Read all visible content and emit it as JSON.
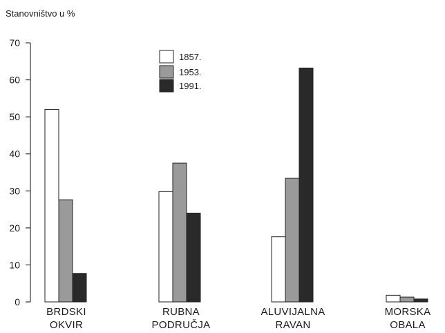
{
  "chart_data": {
    "type": "bar",
    "title": "",
    "ylabel": "Stanovništvo u %",
    "xlabel": "",
    "ylim": [
      0,
      70
    ],
    "yticks": [
      0,
      10,
      20,
      30,
      40,
      50,
      60,
      70
    ],
    "categories": [
      [
        "BRDSKI",
        "OKVIR"
      ],
      [
        "RUBNA",
        "PODRUČJA"
      ],
      [
        "ALUVIJALNA",
        "RAVAN"
      ],
      [
        "MORSKA",
        "OBALA"
      ]
    ],
    "series": [
      {
        "name": "1857.",
        "color": "#ffffff",
        "values": [
          52,
          29.8,
          17.6,
          1.8
        ]
      },
      {
        "name": "1953.",
        "color": "#9a9a9a",
        "values": [
          27.6,
          37.5,
          33.4,
          1.3
        ]
      },
      {
        "name": "1991.",
        "color": "#2a2a2a",
        "values": [
          7.7,
          24,
          63.2,
          0.8
        ]
      }
    ],
    "grid": false,
    "legend_position": "top-center"
  }
}
